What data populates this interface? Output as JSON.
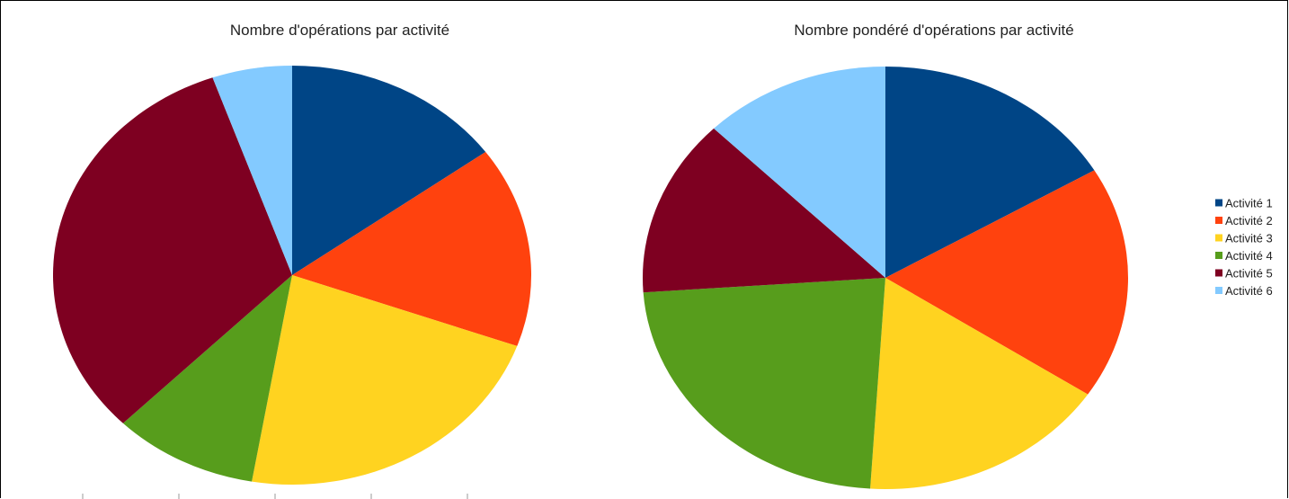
{
  "chart_data": [
    {
      "type": "pie",
      "title": "Nombre d'opérations par activité",
      "categories": [
        "Activité 1",
        "Activité 2",
        "Activité 3",
        "Activité 4",
        "Activité 5",
        "Activité 6"
      ],
      "values": [
        15.0,
        15.5,
        22.2,
        9.8,
        32.1,
        5.4
      ]
    },
    {
      "type": "pie",
      "title": "Nombre pondéré d'opérations par activité",
      "categories": [
        "Activité 1",
        "Activité 2",
        "Activité 3",
        "Activité 4",
        "Activité 5",
        "Activité 6"
      ],
      "values": [
        16.5,
        17.8,
        16.7,
        22.9,
        13.6,
        12.5
      ]
    }
  ],
  "legend": {
    "placement": "right",
    "items": [
      "Activité 1",
      "Activité 2",
      "Activité 3",
      "Activité 4",
      "Activité 5",
      "Activité 6"
    ]
  },
  "colors": [
    "#004586",
    "#ff420e",
    "#ffd320",
    "#579d1c",
    "#7e0021",
    "#83caff"
  ]
}
